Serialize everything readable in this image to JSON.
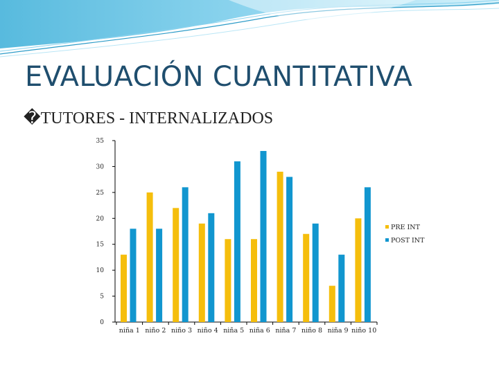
{
  "slide": {
    "title": "EVALUACIÓN CUANTITATIVA",
    "subtitle": "�TUTORES - INTERNALIZADOS"
  },
  "colors": {
    "title": "#1f4e6e",
    "pre": "#f5be0c",
    "post": "#1196cf",
    "wave": "#3aaed8"
  },
  "chart_data": {
    "type": "bar",
    "title": "",
    "xlabel": "",
    "ylabel": "",
    "categories": [
      "niña 1",
      "niño 2",
      "niño 3",
      "niño 4",
      "niña 5",
      "niña 6",
      "niña 7",
      "niño 8",
      "niña 9",
      "niño 10"
    ],
    "series": [
      {
        "name": "PRE INT",
        "values": [
          13,
          25,
          22,
          19,
          16,
          16,
          29,
          17,
          7,
          20
        ]
      },
      {
        "name": "POST INT",
        "values": [
          18,
          18,
          26,
          21,
          31,
          33,
          28,
          19,
          13,
          26
        ]
      }
    ],
    "yticks": [
      "0",
      "5",
      "10",
      "15",
      "20",
      "25",
      "30",
      "35"
    ],
    "ylim": [
      0,
      35
    ],
    "grid": false,
    "legend_position": "right"
  }
}
